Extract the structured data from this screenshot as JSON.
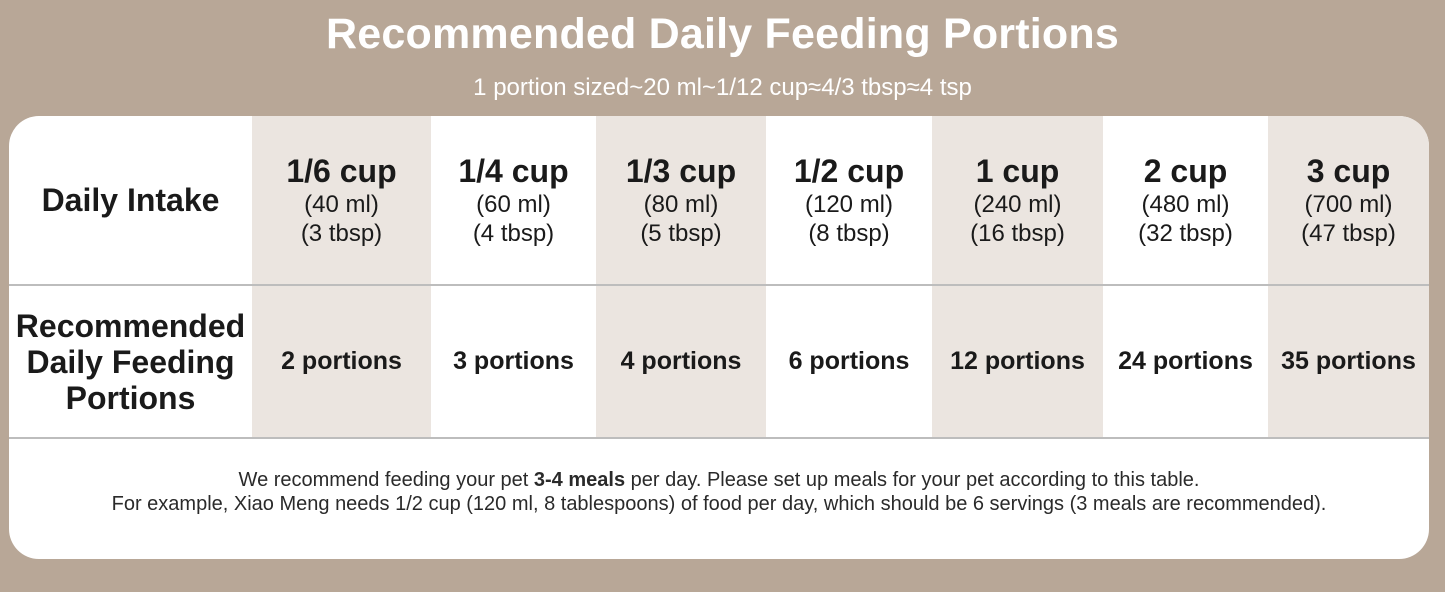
{
  "header": {
    "title": "Recommended Daily Feeding Portions",
    "subtitle": "1 portion sized~20 ml~1/12 cup≈4/3 tbsp≈4 tsp"
  },
  "table": {
    "row_labels": {
      "intake": "Daily Intake",
      "portions_line1": "Recommended",
      "portions_line2": "Daily Feeding",
      "portions_line3": "Portions"
    },
    "columns": [
      {
        "cup": "1/6 cup",
        "ml": "(40 ml)",
        "tbsp": "(3 tbsp)",
        "portions": "2 portions"
      },
      {
        "cup": "1/4 cup",
        "ml": "(60 ml)",
        "tbsp": "(4 tbsp)",
        "portions": "3 portions"
      },
      {
        "cup": "1/3 cup",
        "ml": "(80 ml)",
        "tbsp": "(5 tbsp)",
        "portions": "4 portions"
      },
      {
        "cup": "1/2 cup",
        "ml": "(120 ml)",
        "tbsp": "(8 tbsp)",
        "portions": "6 portions"
      },
      {
        "cup": "1 cup",
        "ml": "(240 ml)",
        "tbsp": "(16 tbsp)",
        "portions": "12 portions"
      },
      {
        "cup": "2 cup",
        "ml": "(480 ml)",
        "tbsp": "(32 tbsp)",
        "portions": "24 portions"
      },
      {
        "cup": "3 cup",
        "ml": "(700 ml)",
        "tbsp": "(47 tbsp)",
        "portions": "35 portions"
      }
    ]
  },
  "note": {
    "line1_before": "We recommend feeding your pet ",
    "line1_bold": "3-4 meals",
    "line1_after": " per day. Please set up meals for your pet according to this table.",
    "line2": "For example, Xiao Meng needs 1/2 cup (120 ml, 8 tablespoons) of food per day, which should be 6 servings (3 meals are recommended)."
  },
  "colors": {
    "background": "#b8a797",
    "card": "#ffffff",
    "shaded_cell": "#ebe5e0",
    "divider": "#bdbdbd"
  }
}
